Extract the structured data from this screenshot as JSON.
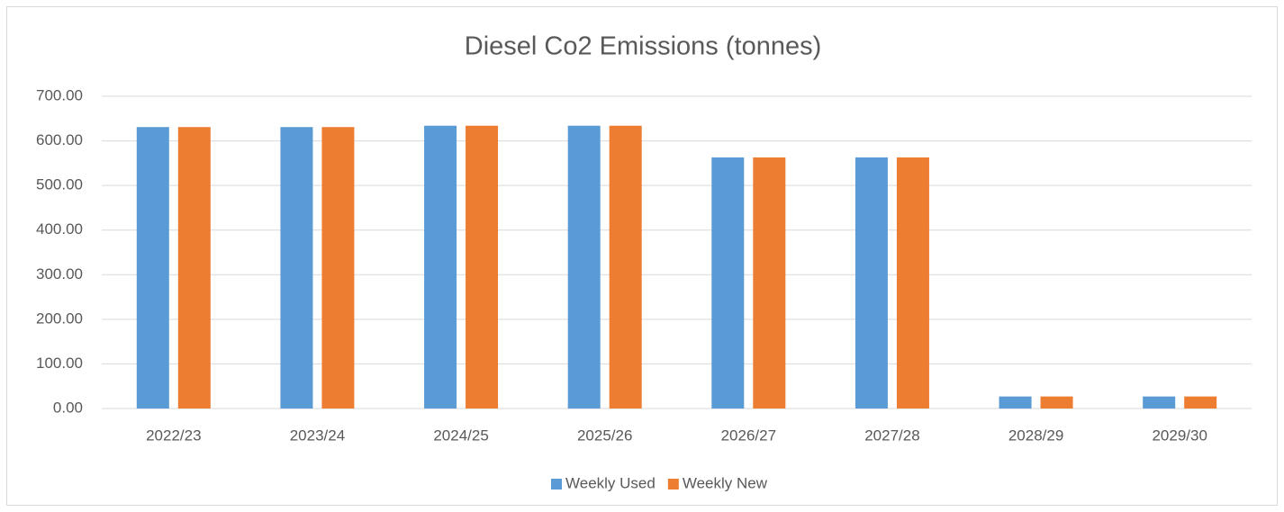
{
  "chart_data": {
    "type": "bar",
    "title": "Diesel Co2 Emissions (tonnes)",
    "categories": [
      "2022/23",
      "2023/24",
      "2024/25",
      "2025/26",
      "2026/27",
      "2027/28",
      "2028/29",
      "2029/30"
    ],
    "series": [
      {
        "name": "Weekly Used",
        "color": "#5b9bd5",
        "values": [
          631,
          631,
          634,
          634,
          563,
          563,
          27,
          27
        ]
      },
      {
        "name": "Weekly New",
        "color": "#ed7d31",
        "values": [
          631,
          631,
          634,
          634,
          563,
          563,
          27,
          27
        ]
      }
    ],
    "ylim": [
      0,
      700
    ],
    "yticks": [
      {
        "value": 0,
        "label": "0.00"
      },
      {
        "value": 100,
        "label": "100.00"
      },
      {
        "value": 200,
        "label": "200.00"
      },
      {
        "value": 300,
        "label": "300.00"
      },
      {
        "value": 400,
        "label": "400.00"
      },
      {
        "value": 500,
        "label": "500.00"
      },
      {
        "value": 600,
        "label": "600.00"
      },
      {
        "value": 700,
        "label": "700.00"
      }
    ],
    "grid": true,
    "legend": "bottom"
  }
}
